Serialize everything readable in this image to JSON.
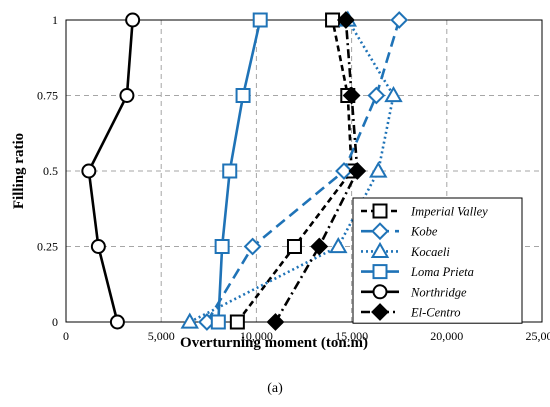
{
  "chart_data": {
    "type": "line",
    "xlabel": "Overturning moment (ton.m)",
    "ylabel": "Filling ratio",
    "xlim": [
      0,
      25000
    ],
    "ylim": [
      0,
      1
    ],
    "xticks": [
      0,
      5000,
      10000,
      15000,
      20000,
      25000
    ],
    "xtick_labels": [
      "0",
      "5,000",
      "10,000",
      "15,000",
      "20,000",
      "25,000"
    ],
    "yticks": [
      0,
      0.25,
      0.5,
      0.75,
      1
    ],
    "ytick_labels": [
      "0",
      "0.25",
      "0.5",
      "0.75",
      "1"
    ],
    "grid": true,
    "legend_position": "lower-right",
    "caption": "(a)",
    "series": [
      {
        "name": "Imperial Valley",
        "color": "#000000",
        "dash": "dashed",
        "marker": "square-open",
        "points": [
          [
            9000,
            0
          ],
          [
            12000,
            0.25
          ],
          [
            15000,
            0.5
          ],
          [
            14800,
            0.75
          ],
          [
            14000,
            1
          ]
        ]
      },
      {
        "name": "Kobe",
        "color": "#1f73b7",
        "dash": "longdash",
        "marker": "diamond-open",
        "points": [
          [
            7400,
            0
          ],
          [
            9800,
            0.25
          ],
          [
            14600,
            0.5
          ],
          [
            16300,
            0.75
          ],
          [
            17500,
            1
          ]
        ]
      },
      {
        "name": "Kocaeli",
        "color": "#1f73b7",
        "dash": "dotted",
        "marker": "triangle-open",
        "points": [
          [
            6500,
            0
          ],
          [
            14300,
            0.25
          ],
          [
            16400,
            0.5
          ],
          [
            17200,
            0.75
          ],
          [
            14800,
            1
          ]
        ]
      },
      {
        "name": "Loma Prieta",
        "color": "#1f73b7",
        "dash": "solid",
        "marker": "square-open",
        "points": [
          [
            8000,
            0
          ],
          [
            8200,
            0.25
          ],
          [
            8600,
            0.5
          ],
          [
            9300,
            0.75
          ],
          [
            10200,
            1
          ]
        ]
      },
      {
        "name": "Northridge",
        "color": "#000000",
        "dash": "solid",
        "marker": "circle-open",
        "points": [
          [
            2700,
            0
          ],
          [
            1700,
            0.25
          ],
          [
            1200,
            0.5
          ],
          [
            3200,
            0.75
          ],
          [
            3500,
            1
          ]
        ]
      },
      {
        "name": "El-Centro",
        "color": "#000000",
        "dash": "dashdot",
        "marker": "diamond-filled",
        "points": [
          [
            11000,
            0
          ],
          [
            13300,
            0.25
          ],
          [
            15300,
            0.5
          ],
          [
            15000,
            0.75
          ],
          [
            14700,
            1
          ]
        ]
      }
    ]
  }
}
